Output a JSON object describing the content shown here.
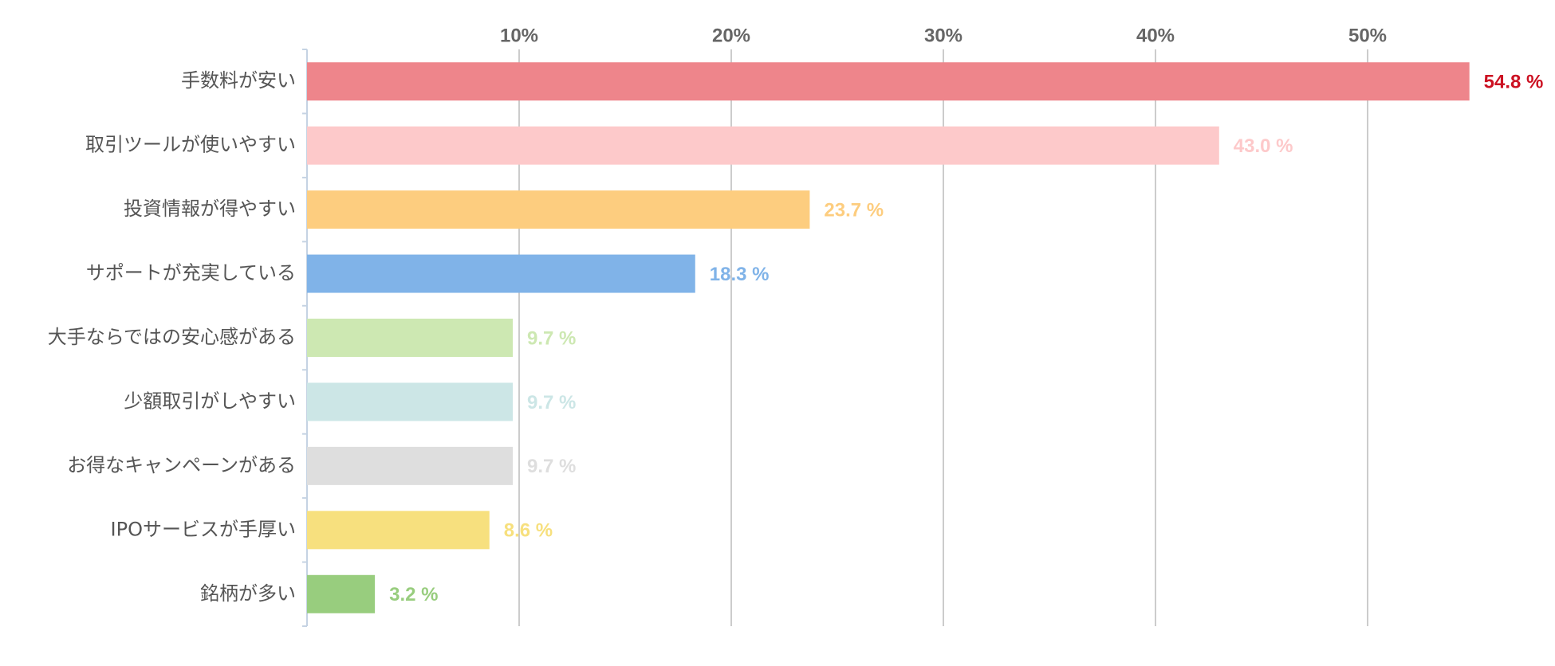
{
  "chart_data": {
    "type": "hbar",
    "categories": [
      "手数料が安い",
      "取引ツールが使いやすい",
      "投資情報が得やすい",
      "サポートが充実している",
      "大手ならではの安心感がある",
      "少額取引がしやすい",
      "お得なキャンペーンがある",
      "IPOサービスが手厚い",
      "銘柄が多い"
    ],
    "values": [
      54.8,
      43.0,
      23.7,
      18.3,
      9.7,
      9.7,
      9.7,
      8.6,
      3.2
    ],
    "value_labels": [
      "54.8 %",
      "43.0 %",
      "23.7 %",
      "18.3 %",
      "9.7 %",
      "9.7 %",
      "9.7 %",
      "8.6 %",
      "3.2 %"
    ],
    "colors": [
      "#ee858b",
      "#fdc9ca",
      "#fdcd7f",
      "#80b3e8",
      "#cde8b2",
      "#cce6e6",
      "#dedede",
      "#f7e07e",
      "#98cd7e"
    ],
    "label_colors": [
      "#cc1122",
      "#fdc9ca",
      "#fdcd7f",
      "#80b3e8",
      "#cde8b2",
      "#cce6e6",
      "#dedede",
      "#f7e07e",
      "#98cd7e"
    ],
    "xlim": [
      0,
      55
    ],
    "xticks": [
      {
        "value": 10,
        "label": "10%"
      },
      {
        "value": 20,
        "label": "20%"
      },
      {
        "value": 30,
        "label": "30%"
      },
      {
        "value": 40,
        "label": "40%"
      },
      {
        "value": 50,
        "label": "50%"
      }
    ],
    "grid": true
  }
}
